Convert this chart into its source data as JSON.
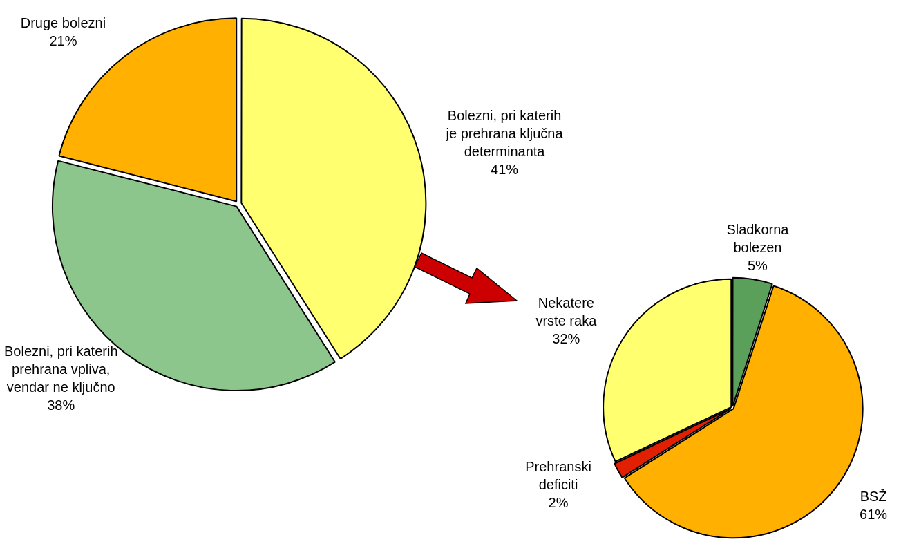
{
  "chart_data": [
    {
      "type": "pie",
      "categories": [
        "Bolezni, pri katerih je prehrana ključna determinanta",
        "Bolezni, pri katerih prehrana vpliva, vendar ne ključno",
        "Druge bolezni"
      ],
      "values": [
        41,
        38,
        21
      ],
      "colors": [
        "#ffff70",
        "#8cc68c",
        "#ffb000"
      ],
      "value_labels": [
        "41%",
        "38%",
        "21%"
      ]
    },
    {
      "type": "pie",
      "categories": [
        "Sladkorna bolezen",
        "BSŽ",
        "Prehranski deficiti",
        "Nekatere vrste raka"
      ],
      "values": [
        5,
        61,
        2,
        32
      ],
      "colors": [
        "#5aa05a",
        "#ffb000",
        "#e02000",
        "#ffff70"
      ],
      "value_labels": [
        "5%",
        "61%",
        "2%",
        "32%"
      ]
    }
  ]
}
